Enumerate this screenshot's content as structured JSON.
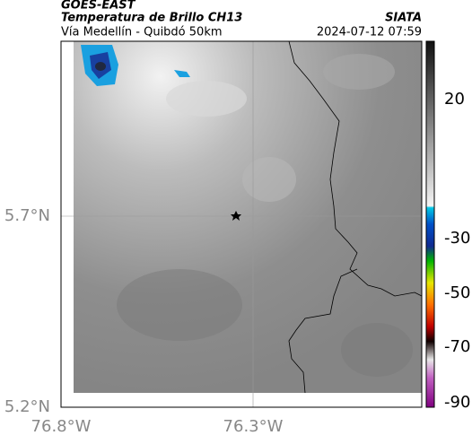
{
  "header": {
    "source": "GOES-EAST",
    "product": "Temperatura de Brillo CH13",
    "agency": "SIATA",
    "location": "Vía Medellín - Quibdó 50km",
    "datetime": "2024-07-12 07:59"
  },
  "map": {
    "lat_labels": [
      "5.7°N",
      "5.2°N"
    ],
    "lon_labels": [
      "76.8°W",
      "76.3°W"
    ]
  },
  "colorbar": {
    "tick_labels": [
      "20",
      "-30",
      "-50",
      "-70",
      "-90"
    ]
  }
}
